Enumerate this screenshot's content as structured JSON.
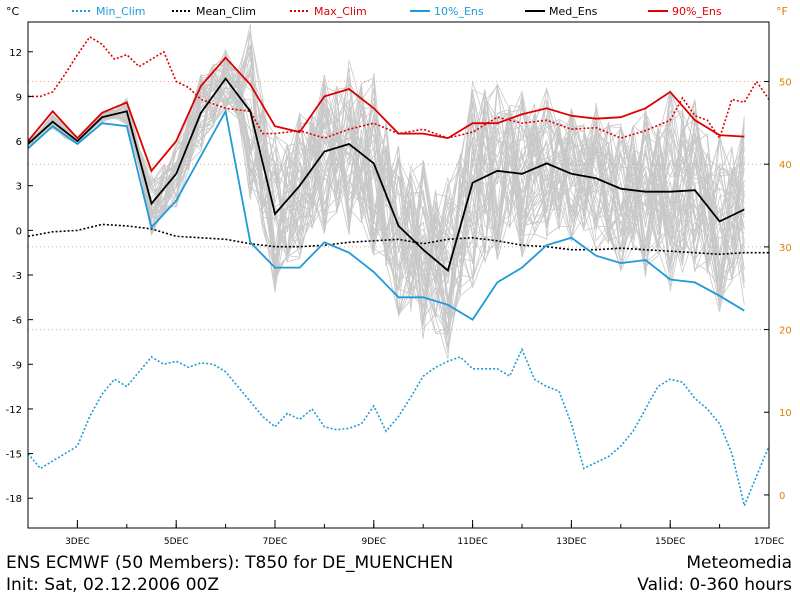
{
  "chart_data": {
    "type": "line",
    "title": "ENS ECMWF (50 Members): T850 for DE_MUENCHEN",
    "subtitle": "Init: Sat, 02.12.2006 00Z",
    "left_unit": "°C",
    "right_unit": "°F",
    "x_range_days": [
      2,
      17
    ],
    "xticks": [
      {
        "x": 3,
        "label": "3DEC"
      },
      {
        "x": 5,
        "label": "5DEC"
      },
      {
        "x": 7,
        "label": "7DEC"
      },
      {
        "x": 9,
        "label": "9DEC"
      },
      {
        "x": 11,
        "label": "11DEC"
      },
      {
        "x": 13,
        "label": "13DEC"
      },
      {
        "x": 15,
        "label": "15DEC"
      },
      {
        "x": 17,
        "label": "17DEC"
      }
    ],
    "ylim": [
      -20,
      14
    ],
    "yticks": [
      -18,
      -15,
      -12,
      -9,
      -6,
      -3,
      0,
      3,
      6,
      9,
      12
    ],
    "yticks_right_F": [
      0,
      10,
      20,
      30,
      40,
      50
    ],
    "ref_lines_F": [
      20,
      30,
      40,
      50
    ],
    "legend": [
      {
        "name": "Min_Clim",
        "color": "#1e9bd7",
        "dash": true
      },
      {
        "name": "Mean_Clim",
        "color": "#000000",
        "dash": true
      },
      {
        "name": "Max_Clim",
        "color": "#dd0000",
        "dash": true
      },
      {
        "name": "10%_Ens",
        "color": "#1e9bd7",
        "dash": false
      },
      {
        "name": "Med_Ens",
        "color": "#000000",
        "dash": false
      },
      {
        "name": "90%_Ens",
        "color": "#dd0000",
        "dash": false
      }
    ],
    "series": [
      {
        "name": "Min_Clim",
        "x": [
          2.0,
          2.25,
          2.5,
          2.75,
          3.0,
          3.25,
          3.5,
          3.75,
          4.0,
          4.25,
          4.5,
          4.75,
          5.0,
          5.25,
          5.5,
          5.75,
          6.0,
          6.25,
          6.5,
          6.75,
          7.0,
          7.25,
          7.5,
          7.75,
          8.0,
          8.25,
          8.5,
          8.75,
          9.0,
          9.25,
          9.5,
          9.75,
          10.0,
          10.25,
          10.5,
          10.75,
          11.0,
          11.25,
          11.5,
          11.75,
          12.0,
          12.25,
          12.5,
          12.75,
          13.0,
          13.25,
          13.5,
          13.75,
          14.0,
          14.25,
          14.5,
          14.75,
          15.0,
          15.25,
          15.5,
          15.75,
          16.0,
          16.25,
          16.5,
          16.75,
          17.0
        ],
        "values": [
          -15.0,
          -16.0,
          -15.5,
          -15.0,
          -14.5,
          -12.5,
          -11.0,
          -10.0,
          -10.5,
          -9.5,
          -8.5,
          -9.0,
          -8.8,
          -9.2,
          -8.9,
          -9.0,
          -9.5,
          -10.5,
          -11.5,
          -12.5,
          -13.2,
          -12.3,
          -12.7,
          -12.0,
          -13.2,
          -13.4,
          -13.3,
          -13.0,
          -11.8,
          -13.5,
          -12.5,
          -11.2,
          -9.8,
          -9.2,
          -8.8,
          -8.5,
          -9.3,
          -9.3,
          -9.3,
          -9.8,
          -8.0,
          -10.0,
          -10.5,
          -10.8,
          -13.0,
          -16.0,
          -15.6,
          -15.2,
          -14.5,
          -13.5,
          -12.0,
          -10.5,
          -10.0,
          -10.2,
          -11.3,
          -12.0,
          -13.0,
          -15.0,
          -18.5,
          -16.5,
          -14.5
        ]
      },
      {
        "name": "Mean_Clim",
        "x": [
          2.0,
          2.5,
          3.0,
          3.5,
          4.0,
          4.5,
          5.0,
          5.5,
          6.0,
          6.5,
          7.0,
          7.5,
          8.0,
          8.5,
          9.0,
          9.5,
          10.0,
          10.5,
          11.0,
          11.5,
          12.0,
          12.5,
          13.0,
          13.5,
          14.0,
          14.5,
          15.0,
          15.5,
          16.0,
          16.5,
          17.0
        ],
        "values": [
          -0.4,
          -0.1,
          0.0,
          0.4,
          0.3,
          0.1,
          -0.4,
          -0.5,
          -0.6,
          -0.9,
          -1.1,
          -1.1,
          -1.0,
          -0.8,
          -0.7,
          -0.6,
          -0.9,
          -0.6,
          -0.5,
          -0.7,
          -1.0,
          -1.1,
          -1.3,
          -1.3,
          -1.2,
          -1.3,
          -1.4,
          -1.5,
          -1.6,
          -1.5,
          -1.5
        ]
      },
      {
        "name": "Max_Clim",
        "x": [
          2.0,
          2.25,
          2.5,
          2.75,
          3.0,
          3.25,
          3.5,
          3.75,
          4.0,
          4.25,
          4.5,
          4.75,
          5.0,
          5.25,
          5.5,
          5.75,
          6.0,
          6.25,
          6.5,
          6.75,
          7.0,
          7.5,
          8.0,
          8.5,
          9.0,
          9.5,
          10.0,
          10.5,
          11.0,
          11.5,
          12.0,
          12.5,
          13.0,
          13.5,
          14.0,
          14.5,
          15.0,
          15.25,
          15.5,
          15.75,
          16.0,
          16.25,
          16.5,
          16.75,
          17.0
        ],
        "values": [
          9.0,
          9.0,
          9.3,
          10.5,
          11.8,
          13.0,
          12.5,
          11.5,
          11.8,
          11.0,
          11.5,
          12.0,
          10.0,
          9.6,
          8.8,
          8.5,
          8.2,
          8.1,
          8.0,
          6.5,
          6.5,
          6.7,
          6.2,
          6.8,
          7.2,
          6.5,
          6.8,
          6.2,
          6.6,
          7.6,
          7.2,
          7.4,
          6.8,
          6.9,
          6.2,
          6.7,
          7.4,
          8.9,
          7.7,
          7.4,
          6.2,
          8.8,
          8.6,
          10.0,
          8.8
        ]
      },
      {
        "name": "10%_Ens",
        "x": [
          2.0,
          2.5,
          3.0,
          3.5,
          4.0,
          4.5,
          5.0,
          5.5,
          6.0,
          6.5,
          7.0,
          7.5,
          8.0,
          8.5,
          9.0,
          9.5,
          10.0,
          10.5,
          11.0,
          11.5,
          12.0,
          12.5,
          13.0,
          13.5,
          14.0,
          14.5,
          15.0,
          15.5,
          16.0,
          16.5
        ],
        "values": [
          5.5,
          7.0,
          5.8,
          7.2,
          7.0,
          0.2,
          2.0,
          5.0,
          8.0,
          -0.8,
          -2.5,
          -2.5,
          -0.8,
          -1.5,
          -2.8,
          -4.5,
          -4.5,
          -5.0,
          -6.0,
          -3.5,
          -2.5,
          -1.0,
          -0.5,
          -1.7,
          -2.2,
          -2.0,
          -3.3,
          -3.5,
          -4.4,
          -5.4
        ]
      },
      {
        "name": "Med_Ens",
        "x": [
          2.0,
          2.5,
          3.0,
          3.5,
          4.0,
          4.5,
          5.0,
          5.5,
          6.0,
          6.5,
          7.0,
          7.5,
          8.0,
          8.5,
          9.0,
          9.5,
          10.0,
          10.5,
          11.0,
          11.5,
          12.0,
          12.5,
          13.0,
          13.5,
          14.0,
          14.5,
          15.0,
          15.5,
          16.0,
          16.5
        ],
        "values": [
          5.8,
          7.3,
          6.0,
          7.6,
          8.0,
          1.8,
          3.8,
          7.9,
          10.2,
          8.0,
          1.1,
          3.0,
          5.3,
          5.8,
          4.5,
          0.3,
          -1.3,
          -2.7,
          3.2,
          4.0,
          3.8,
          4.5,
          3.8,
          3.5,
          2.8,
          2.6,
          2.6,
          2.7,
          0.6,
          1.4
        ]
      },
      {
        "name": "90%_Ens",
        "x": [
          2.0,
          2.5,
          3.0,
          3.5,
          4.0,
          4.5,
          5.0,
          5.5,
          6.0,
          6.5,
          7.0,
          7.5,
          8.0,
          8.5,
          9.0,
          9.5,
          10.0,
          10.5,
          11.0,
          11.5,
          12.0,
          12.5,
          13.0,
          13.5,
          14.0,
          14.5,
          15.0,
          15.5,
          16.0,
          16.5
        ],
        "values": [
          6.0,
          8.0,
          6.2,
          7.9,
          8.6,
          4.0,
          6.0,
          9.7,
          11.6,
          9.8,
          7.0,
          6.6,
          9.0,
          9.5,
          8.2,
          6.5,
          6.5,
          6.2,
          7.2,
          7.2,
          7.8,
          8.2,
          7.7,
          7.5,
          7.6,
          8.2,
          9.3,
          7.4,
          6.4,
          6.3
        ]
      }
    ]
  },
  "footer": {
    "title": "ENS ECMWF (50 Members): T850 for DE_MUENCHEN",
    "init": "Init: Sat, 02.12.2006 00Z",
    "brand": "Meteomedia",
    "valid": "Valid: 0-360 hours"
  }
}
